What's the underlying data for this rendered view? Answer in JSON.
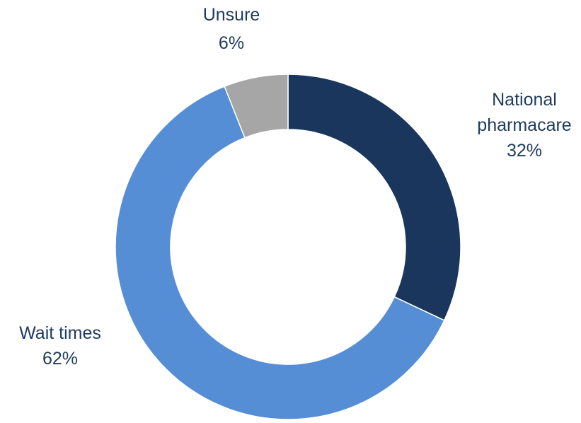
{
  "chart_data": {
    "type": "pie",
    "variant": "donut",
    "title": "",
    "categories": [
      "National pharmacare",
      "Wait times",
      "Unsure"
    ],
    "values": [
      32,
      62,
      6
    ],
    "unit": "%",
    "colors": [
      "#1a365d",
      "#558ed5",
      "#a6a6a6"
    ],
    "start": "top (12 o'clock), clockwise",
    "legend": "none",
    "labels": [
      {
        "lines": [
          "National",
          "pharmacare"
        ],
        "value": "32%"
      },
      {
        "lines": [
          "Wait times"
        ],
        "value": "62%"
      },
      {
        "lines": [
          "Unsure"
        ],
        "value": "6%"
      }
    ]
  }
}
